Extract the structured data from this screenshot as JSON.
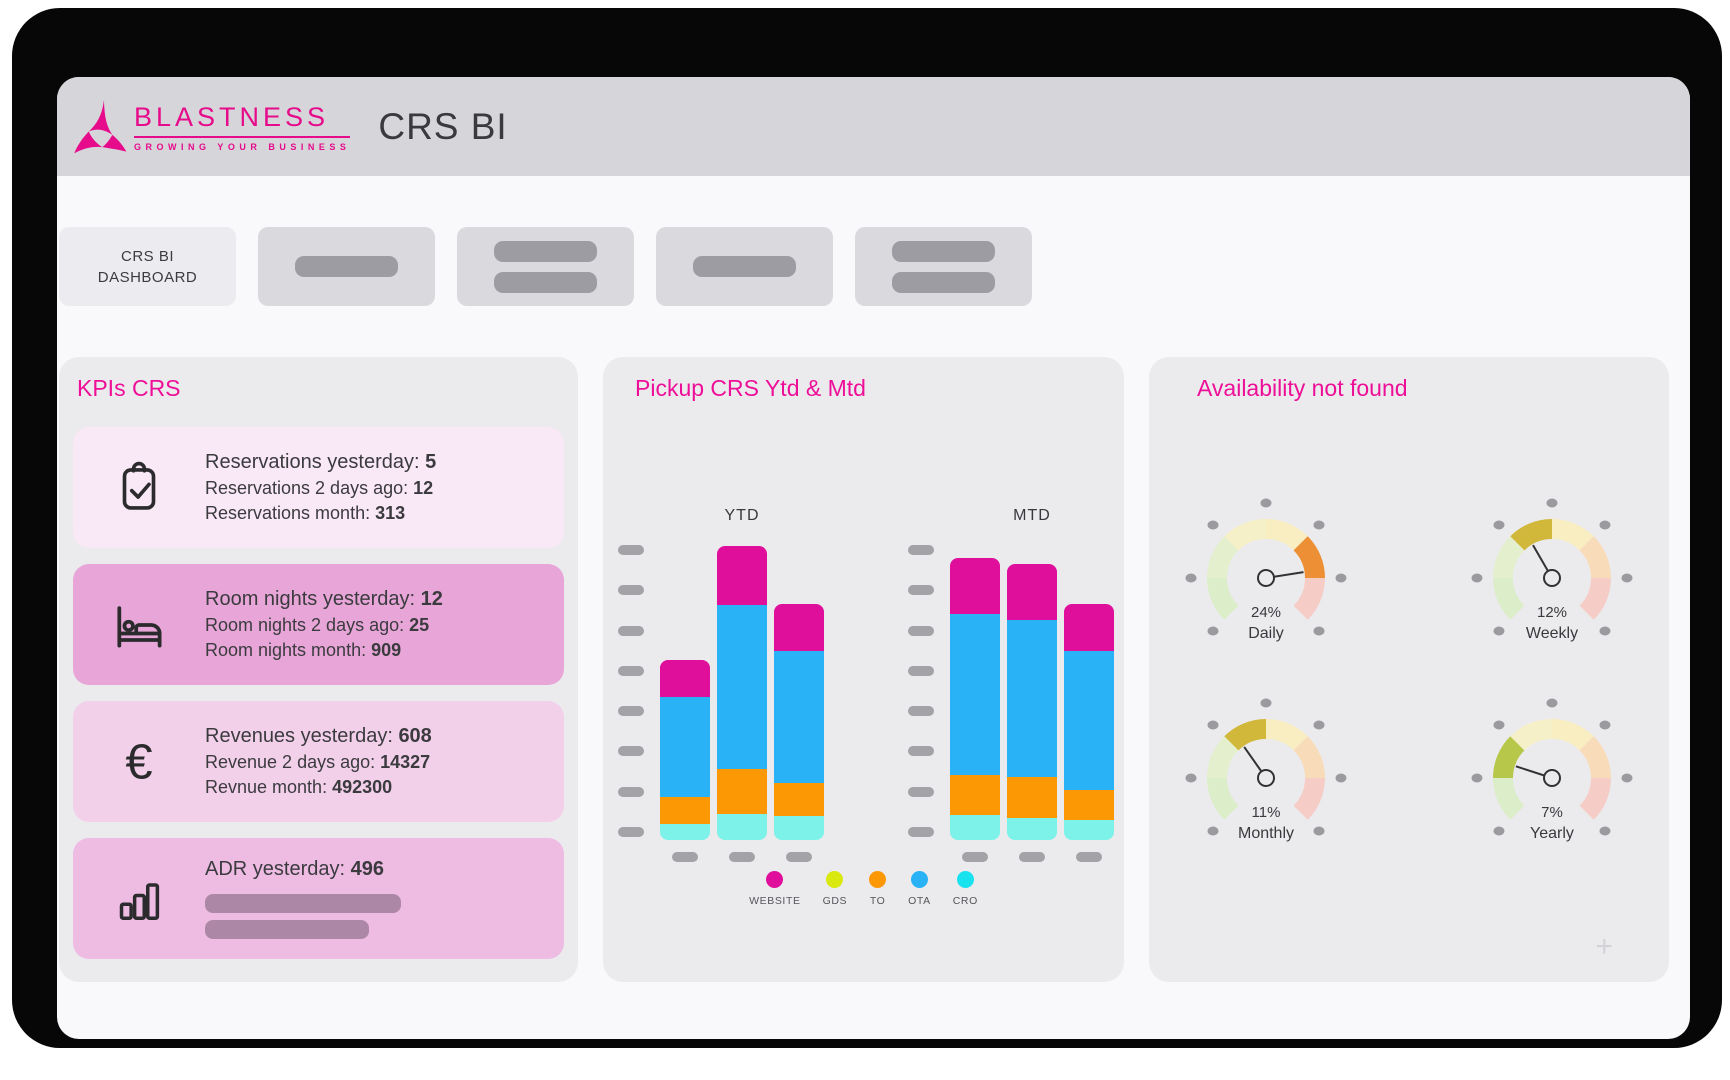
{
  "window": {
    "title": "CRS BI",
    "logo": {
      "brand": "BLASTNESS",
      "tagline": "GROWING YOUR BUSINESS",
      "color": "#e60b8a"
    }
  },
  "nav": {
    "items": [
      {
        "label": "CRS BI\nDASHBOARD",
        "active": true,
        "bars": 0
      },
      {
        "label": null,
        "active": false,
        "bars": 1
      },
      {
        "label": null,
        "active": false,
        "bars": 2
      },
      {
        "label": null,
        "active": false,
        "bars": 1
      },
      {
        "label": null,
        "active": false,
        "bars": 2
      }
    ]
  },
  "kpis": {
    "title": "KPIs CRS",
    "cards": [
      {
        "id": "reservations",
        "icon": "clipboard-check",
        "lines": [
          {
            "label": "Reservations yesterday:",
            "value": "5"
          },
          {
            "label": "Reservations 2 days ago:",
            "value": "12"
          },
          {
            "label": "Reservations month:",
            "value": "313"
          }
        ]
      },
      {
        "id": "room-nights",
        "icon": "bed",
        "lines": [
          {
            "label": "Room nights yesterday:",
            "value": "12"
          },
          {
            "label": "Room nights 2 days ago:",
            "value": "25"
          },
          {
            "label": "Room nights month:",
            "value": "909"
          }
        ]
      },
      {
        "id": "revenues",
        "icon": "euro",
        "lines": [
          {
            "label": "Revenues yesterday:",
            "value": "608"
          },
          {
            "label": "Revenue 2 days ago:",
            "value": "14327"
          },
          {
            "label": "Revnue month:",
            "value": "492300"
          }
        ]
      },
      {
        "id": "adr",
        "icon": "bar-chart",
        "lines": [
          {
            "label": "ADR yesterday:",
            "value": "496"
          }
        ],
        "placeholder_bars": [
          196,
          164
        ]
      }
    ]
  },
  "pickup": {
    "title": "Pickup CRS Ytd & Mtd"
  },
  "availability": {
    "title": "Availability not found",
    "plus_glyph": "+"
  },
  "chart_data": [
    {
      "type": "bar",
      "stacked": true,
      "title": "Pickup CRS Ytd & Mtd",
      "xlabel": "",
      "ylabel": "",
      "axis_note": "axis tick labels are placeholder dashes, no numbers shown",
      "legend_position": "bottom",
      "series_order_bottom_to_top": [
        "CRO",
        "TO",
        "OTA",
        "WEBSITE"
      ],
      "legend": [
        {
          "name": "WEBSITE",
          "color": "#df0f9c"
        },
        {
          "name": "GDS",
          "color": "#d9e90f"
        },
        {
          "name": "TO",
          "color": "#fc9803"
        },
        {
          "name": "OTA",
          "color": "#2ab2f7"
        },
        {
          "name": "CRO",
          "color": "#18e2ee",
          "bar_color": "#7cf2e9"
        }
      ],
      "values_note": "relative heights in px, no numeric axis visible; GDS = 0 everywhere",
      "groups": [
        {
          "label": "YTD",
          "bars": [
            {
              "CRO": 16,
              "TO": 27,
              "OTA": 100,
              "WEBSITE": 37,
              "GDS": 0
            },
            {
              "CRO": 26,
              "TO": 45,
              "OTA": 164,
              "WEBSITE": 59,
              "GDS": 0
            },
            {
              "CRO": 24,
              "TO": 33,
              "OTA": 132,
              "WEBSITE": 47,
              "GDS": 0
            }
          ]
        },
        {
          "label": "MTD",
          "bars": [
            {
              "CRO": 25,
              "TO": 40,
              "OTA": 161,
              "WEBSITE": 56,
              "GDS": 0
            },
            {
              "CRO": 22,
              "TO": 41,
              "OTA": 157,
              "WEBSITE": 56,
              "GDS": 0
            },
            {
              "CRO": 20,
              "TO": 30,
              "OTA": 139,
              "WEBSITE": 47,
              "GDS": 0
            }
          ]
        }
      ]
    },
    {
      "type": "gauge",
      "title": "Availability not found",
      "segment_colors": [
        "#dcedca",
        "#e4efcd",
        "#f6f0c9",
        "#f9edc2",
        "#f8dcba",
        "#f6ccc6"
      ],
      "dot_color": "#9b9b9f",
      "needle_color": "#323234",
      "dot_angles_deg": [
        0,
        45,
        90,
        135,
        180,
        225,
        315
      ],
      "gauges": [
        {
          "percent": 24,
          "value_label": "24%",
          "period": "Daily",
          "active_segment": 5,
          "active_color": "#ec8f35",
          "needle_angle_deg": 9
        },
        {
          "percent": 12,
          "value_label": "12%",
          "period": "Weekly",
          "active_segment": 3,
          "active_color": "#d1b83a",
          "needle_angle_deg": 120
        },
        {
          "percent": 11,
          "value_label": "11%",
          "period": "Monthly",
          "active_segment": 3,
          "active_color": "#d1b83a",
          "needle_angle_deg": 125
        },
        {
          "percent": 7,
          "value_label": "7%",
          "period": "Yearly",
          "active_segment": 2,
          "active_color": "#b6c74a",
          "needle_angle_deg": 162
        }
      ]
    }
  ]
}
